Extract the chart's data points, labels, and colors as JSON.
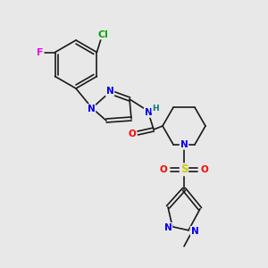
{
  "bg_color": "#e8e8e8",
  "bond_color": "#1a1a1a",
  "colors": {
    "N": "#0000ee",
    "O": "#ff0000",
    "S": "#cccc00",
    "Cl": "#00aa00",
    "F": "#ee00ee",
    "H": "#007777",
    "C": "#1a1a1a"
  },
  "font_size": 7.5,
  "lw": 1.2
}
